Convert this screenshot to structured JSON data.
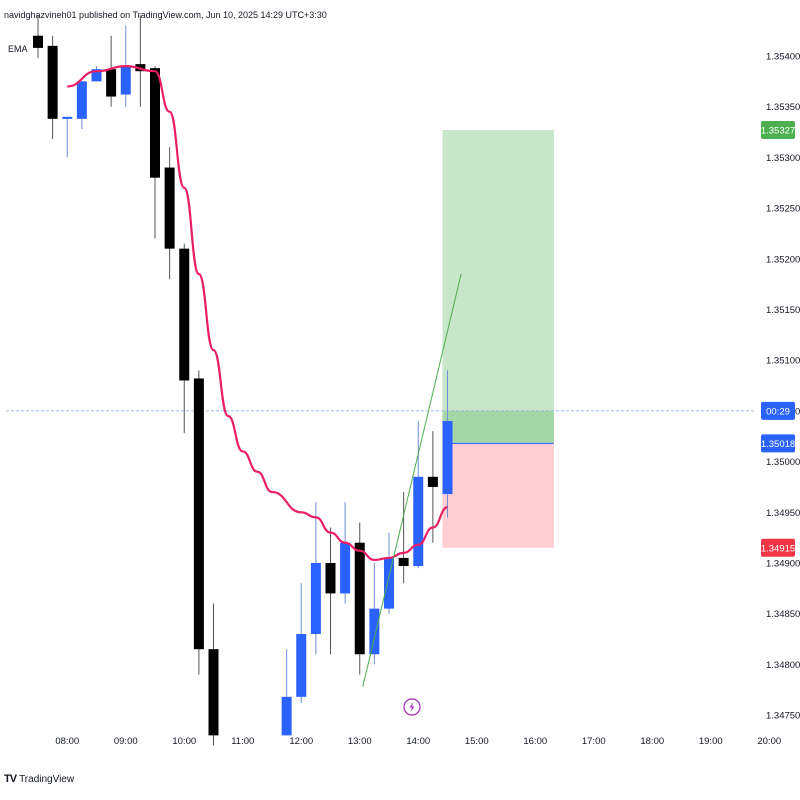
{
  "header": {
    "published_text": "navidghazvineh01 published on TradingView.com, Jun 10, 2025 14:29 UTC+3:30",
    "indicator_label": "EMA"
  },
  "footer": {
    "brand_logo": "TV",
    "brand_name": "TradingView"
  },
  "colors": {
    "bull": "#2962ff",
    "bear": "#000000",
    "ema": "#e91e63",
    "profit_zone": "#c8e6c9",
    "loss_zone": "#ffcdd2",
    "target_badge": "#4caf50",
    "stop_badge": "#f23645",
    "entry_badge": "#2962ff",
    "trendline": "#4caf50",
    "price_line": "#2962ff"
  },
  "chart_data": {
    "type": "candlestick",
    "symbol": "",
    "x_ticks": [
      "08:00",
      "09:00",
      "10:00",
      "11:00",
      "12:00",
      "13:00",
      "14:00",
      "15:00",
      "16:00",
      "17:00",
      "18:00",
      "19:00",
      "20:00"
    ],
    "y_ticks": [
      "1.34750",
      "1.34800",
      "1.34850",
      "1.34900",
      "1.34950",
      "1.35000",
      "1.35050",
      "1.35100",
      "1.35150",
      "1.35200",
      "1.35250",
      "1.35300",
      "1.35350",
      "1.35400"
    ],
    "ylim": [
      1.3472,
      1.3543
    ],
    "xlim_hours": [
      7.5,
      20.25
    ],
    "candle_interval_minutes": 15,
    "candles": [
      {
        "t": "07:30",
        "o": 1.3542,
        "h": 1.3544,
        "l": 1.35398,
        "c": 1.35408
      },
      {
        "t": "07:45",
        "o": 1.3541,
        "h": 1.3542,
        "l": 1.35318,
        "c": 1.35338
      },
      {
        "t": "08:00",
        "o": 1.35338,
        "h": 1.3534,
        "l": 1.353,
        "c": 1.3534
      },
      {
        "t": "08:15",
        "o": 1.35338,
        "h": 1.35375,
        "l": 1.35328,
        "c": 1.35375
      },
      {
        "t": "08:30",
        "o": 1.35375,
        "h": 1.3539,
        "l": 1.35375,
        "c": 1.35387
      },
      {
        "t": "08:45",
        "o": 1.35387,
        "h": 1.3542,
        "l": 1.3535,
        "c": 1.3536
      },
      {
        "t": "09:00",
        "o": 1.35362,
        "h": 1.3543,
        "l": 1.3535,
        "c": 1.3539
      },
      {
        "t": "09:15",
        "o": 1.35392,
        "h": 1.3544,
        "l": 1.3535,
        "c": 1.35385
      },
      {
        "t": "09:30",
        "o": 1.35388,
        "h": 1.3539,
        "l": 1.3522,
        "c": 1.3528
      },
      {
        "t": "09:45",
        "o": 1.3529,
        "h": 1.3531,
        "l": 1.3518,
        "c": 1.3521
      },
      {
        "t": "10:00",
        "o": 1.3521,
        "h": 1.35215,
        "l": 1.35028,
        "c": 1.3508
      },
      {
        "t": "10:15",
        "o": 1.35082,
        "h": 1.3509,
        "l": 1.3479,
        "c": 1.34815
      },
      {
        "t": "10:30",
        "o": 1.34815,
        "h": 1.3486,
        "l": 1.3472,
        "c": 1.3473
      },
      {
        "t": "11:45",
        "o": 1.3473,
        "h": 1.34815,
        "l": 1.3473,
        "c": 1.34768
      },
      {
        "t": "12:00",
        "o": 1.34768,
        "h": 1.3488,
        "l": 1.34762,
        "c": 1.3483
      },
      {
        "t": "12:15",
        "o": 1.3483,
        "h": 1.3496,
        "l": 1.3481,
        "c": 1.349
      },
      {
        "t": "12:30",
        "o": 1.349,
        "h": 1.34935,
        "l": 1.3481,
        "c": 1.3487
      },
      {
        "t": "12:45",
        "o": 1.3487,
        "h": 1.3496,
        "l": 1.3486,
        "c": 1.3492
      },
      {
        "t": "13:00",
        "o": 1.3492,
        "h": 1.3494,
        "l": 1.3479,
        "c": 1.3481
      },
      {
        "t": "13:15",
        "o": 1.3481,
        "h": 1.349,
        "l": 1.348,
        "c": 1.34855
      },
      {
        "t": "13:30",
        "o": 1.34855,
        "h": 1.3493,
        "l": 1.3485,
        "c": 1.34905
      },
      {
        "t": "13:45",
        "o": 1.34905,
        "h": 1.3497,
        "l": 1.3488,
        "c": 1.34897
      },
      {
        "t": "14:00",
        "o": 1.34897,
        "h": 1.3504,
        "l": 1.34895,
        "c": 1.34985
      },
      {
        "t": "14:15",
        "o": 1.34985,
        "h": 1.3503,
        "l": 1.3492,
        "c": 1.34975
      },
      {
        "t": "14:30",
        "o": 1.34968,
        "h": 1.3509,
        "l": 1.34945,
        "c": 1.3504
      }
    ],
    "ema": [
      {
        "t": "08:00",
        "v": 1.3537
      },
      {
        "t": "08:30",
        "v": 1.35385
      },
      {
        "t": "09:00",
        "v": 1.3539
      },
      {
        "t": "09:30",
        "v": 1.35385
      },
      {
        "t": "09:45",
        "v": 1.35345
      },
      {
        "t": "10:00",
        "v": 1.3527
      },
      {
        "t": "10:15",
        "v": 1.35185
      },
      {
        "t": "10:30",
        "v": 1.3511
      },
      {
        "t": "10:45",
        "v": 1.35045
      },
      {
        "t": "11:00",
        "v": 1.3501
      },
      {
        "t": "11:15",
        "v": 1.3499
      },
      {
        "t": "11:30",
        "v": 1.3497
      },
      {
        "t": "12:00",
        "v": 1.3495
      },
      {
        "t": "12:15",
        "v": 1.34945
      },
      {
        "t": "12:30",
        "v": 1.3493
      },
      {
        "t": "12:45",
        "v": 1.3492
      },
      {
        "t": "13:00",
        "v": 1.34912
      },
      {
        "t": "13:15",
        "v": 1.34903
      },
      {
        "t": "13:30",
        "v": 1.34905
      },
      {
        "t": "13:45",
        "v": 1.3491
      },
      {
        "t": "14:00",
        "v": 1.34918
      },
      {
        "t": "14:15",
        "v": 1.34935
      },
      {
        "t": "14:30",
        "v": 1.34955
      }
    ],
    "position": {
      "type": "long",
      "entry": 1.35018,
      "target": 1.35327,
      "stop": 1.34915,
      "start_time": "14:30",
      "end_time": "16:15"
    },
    "trendline": {
      "start_time": "13:00",
      "start_price": 1.34778,
      "end_time": "14:45",
      "end_price": 1.35185
    },
    "current_price": 1.3505,
    "price_badges": {
      "target": "1.35327",
      "entry": "1.35018",
      "stop": "1.34915",
      "countdown": "00:29"
    },
    "grid": false
  }
}
